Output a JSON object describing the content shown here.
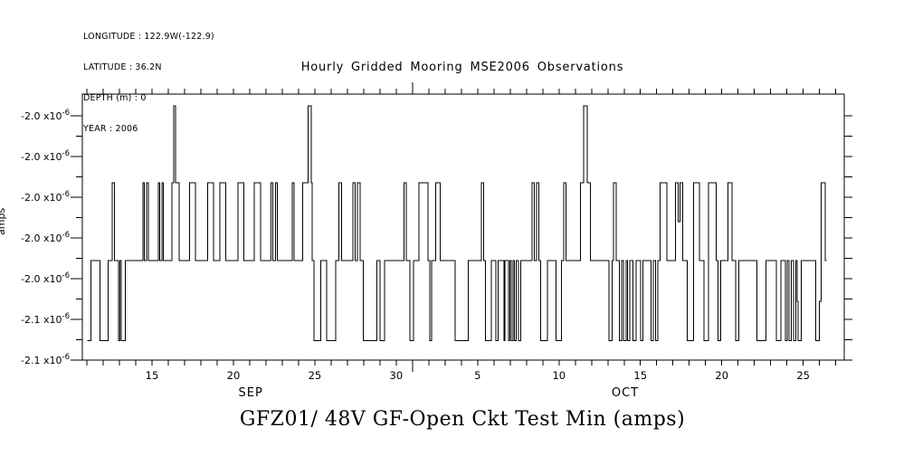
{
  "meta": {
    "lines": [
      "LONGITUDE : 122.9W(-122.9)",
      "LATITUDE : 36.2N",
      "DEPTH (m) : 0",
      "YEAR : 2006"
    ]
  },
  "titles": {
    "top": "Hourly Gridded Mooring MSE2006 Observations",
    "bottom": "GFZ01/ 48V GF-Open Ckt Test Min (amps)",
    "y_axis_clipped": "amps"
  },
  "chart_data": {
    "type": "line",
    "line_style": "step-post",
    "stroke": "#000000",
    "background": "#ffffff",
    "title": "Hourly Gridded Mooring MSE2006 Observations",
    "bottom_title": "GFZ01/ 48V GF-Open Ckt Test Min (amps)",
    "ylabel": "amps",
    "grid": "off",
    "y_axis": {
      "scale_prefix": "x10",
      "scale_exp": "-6",
      "domain_e6": [
        -2.1,
        -1.93667
      ],
      "major_tick_values_e6": [
        -1.95,
        -1.975,
        -2.0,
        -2.025,
        -2.05,
        -2.075,
        -2.1
      ],
      "major_tick_labels": [
        "-2.0",
        "-2.0",
        "-2.0",
        "-2.0",
        "-2.0",
        "-2.1",
        "-2.1"
      ],
      "minor_tick_values_e6": [
        -1.9625,
        -1.9875,
        -2.0125,
        -2.0375,
        -2.0625,
        -2.0875
      ]
    },
    "x_axis": {
      "unit": "days (Sep 11 - Oct 27, 2006)",
      "domain_days": [
        0,
        46.8
      ],
      "daily_tick_first_day": 0.28,
      "daily_tick_count": 47,
      "long_tick_days": [
        20.28
      ],
      "labeled_ticks": [
        {
          "day": 4.28,
          "label": "15"
        },
        {
          "day": 9.28,
          "label": "20"
        },
        {
          "day": 14.28,
          "label": "25"
        },
        {
          "day": 19.28,
          "label": "30"
        },
        {
          "day": 24.28,
          "label": "5"
        },
        {
          "day": 29.28,
          "label": "10"
        },
        {
          "day": 34.28,
          "label": "15"
        },
        {
          "day": 39.28,
          "label": "20"
        },
        {
          "day": 44.28,
          "label": "25"
        }
      ],
      "month_labels": [
        {
          "day": 10.35,
          "label": "SEP"
        },
        {
          "day": 33.35,
          "label": "OCT"
        }
      ]
    },
    "levels_e6": [
      -2.088,
      -2.064,
      -2.039,
      -2.015,
      -1.991,
      -1.968,
      -1.944
    ],
    "series_steps": [
      [
        0.3,
        0
      ],
      [
        0.54,
        2
      ],
      [
        1.09,
        0
      ],
      [
        1.59,
        2
      ],
      [
        1.83,
        4
      ],
      [
        1.98,
        2
      ],
      [
        2.21,
        0
      ],
      [
        2.3,
        2
      ],
      [
        2.38,
        0
      ],
      [
        2.65,
        2
      ],
      [
        3.72,
        4
      ],
      [
        3.8,
        2
      ],
      [
        3.95,
        4
      ],
      [
        4.05,
        2
      ],
      [
        4.67,
        4
      ],
      [
        4.76,
        2
      ],
      [
        4.88,
        4
      ],
      [
        4.97,
        2
      ],
      [
        5.5,
        4
      ],
      [
        5.61,
        6
      ],
      [
        5.72,
        4
      ],
      [
        5.94,
        2
      ],
      [
        6.59,
        4
      ],
      [
        6.96,
        2
      ],
      [
        7.71,
        4
      ],
      [
        8.07,
        2
      ],
      [
        8.44,
        4
      ],
      [
        8.82,
        2
      ],
      [
        9.56,
        4
      ],
      [
        9.93,
        2
      ],
      [
        10.57,
        4
      ],
      [
        10.94,
        2
      ],
      [
        11.59,
        4
      ],
      [
        11.7,
        2
      ],
      [
        11.87,
        4
      ],
      [
        11.98,
        2
      ],
      [
        12.89,
        4
      ],
      [
        13.0,
        2
      ],
      [
        13.54,
        4
      ],
      [
        13.87,
        6
      ],
      [
        14.06,
        4
      ],
      [
        14.13,
        2
      ],
      [
        14.24,
        0
      ],
      [
        14.65,
        2
      ],
      [
        15.02,
        0
      ],
      [
        15.55,
        2
      ],
      [
        15.76,
        4
      ],
      [
        15.93,
        2
      ],
      [
        16.61,
        4
      ],
      [
        16.75,
        2
      ],
      [
        16.9,
        4
      ],
      [
        17.05,
        2
      ],
      [
        17.26,
        0
      ],
      [
        18.09,
        2
      ],
      [
        18.28,
        0
      ],
      [
        18.56,
        2
      ],
      [
        19.76,
        4
      ],
      [
        19.9,
        2
      ],
      [
        20.13,
        0
      ],
      [
        20.35,
        2
      ],
      [
        20.68,
        4
      ],
      [
        21.24,
        2
      ],
      [
        21.33,
        0
      ],
      [
        21.46,
        2
      ],
      [
        21.7,
        4
      ],
      [
        21.98,
        2
      ],
      [
        22.91,
        0
      ],
      [
        23.7,
        2
      ],
      [
        24.52,
        4
      ],
      [
        24.65,
        2
      ],
      [
        24.76,
        0
      ],
      [
        25.13,
        2
      ],
      [
        25.4,
        0
      ],
      [
        25.55,
        2
      ],
      [
        25.9,
        0
      ],
      [
        25.97,
        2
      ],
      [
        26.18,
        0
      ],
      [
        26.25,
        2
      ],
      [
        26.35,
        0
      ],
      [
        26.45,
        2
      ],
      [
        26.55,
        0
      ],
      [
        26.65,
        2
      ],
      [
        26.78,
        0
      ],
      [
        26.92,
        2
      ],
      [
        27.63,
        4
      ],
      [
        27.75,
        2
      ],
      [
        27.9,
        4
      ],
      [
        28.05,
        2
      ],
      [
        28.15,
        0
      ],
      [
        28.56,
        2
      ],
      [
        29.11,
        0
      ],
      [
        29.43,
        2
      ],
      [
        29.57,
        4
      ],
      [
        29.7,
        2
      ],
      [
        30.59,
        4
      ],
      [
        30.78,
        6
      ],
      [
        31.02,
        4
      ],
      [
        31.21,
        2
      ],
      [
        32.35,
        0
      ],
      [
        32.54,
        2
      ],
      [
        32.63,
        4
      ],
      [
        32.8,
        2
      ],
      [
        33.0,
        0
      ],
      [
        33.12,
        2
      ],
      [
        33.25,
        0
      ],
      [
        33.4,
        2
      ],
      [
        33.5,
        0
      ],
      [
        33.62,
        2
      ],
      [
        33.83,
        0
      ],
      [
        34.02,
        2
      ],
      [
        34.3,
        0
      ],
      [
        34.43,
        2
      ],
      [
        34.94,
        0
      ],
      [
        35.07,
        2
      ],
      [
        35.22,
        0
      ],
      [
        35.35,
        2
      ],
      [
        35.5,
        4
      ],
      [
        35.91,
        2
      ],
      [
        36.43,
        4
      ],
      [
        36.6,
        3
      ],
      [
        36.72,
        4
      ],
      [
        36.89,
        2
      ],
      [
        37.17,
        0
      ],
      [
        37.54,
        4
      ],
      [
        37.9,
        2
      ],
      [
        38.18,
        0
      ],
      [
        38.46,
        4
      ],
      [
        38.93,
        2
      ],
      [
        39.06,
        0
      ],
      [
        39.21,
        2
      ],
      [
        39.67,
        4
      ],
      [
        39.91,
        2
      ],
      [
        40.13,
        0
      ],
      [
        40.32,
        2
      ],
      [
        41.43,
        0
      ],
      [
        41.98,
        2
      ],
      [
        42.63,
        0
      ],
      [
        42.91,
        2
      ],
      [
        43.18,
        0
      ],
      [
        43.3,
        2
      ],
      [
        43.42,
        0
      ],
      [
        43.55,
        2
      ],
      [
        43.68,
        0
      ],
      [
        43.83,
        2
      ],
      [
        43.9,
        1
      ],
      [
        43.97,
        0
      ],
      [
        44.15,
        2
      ],
      [
        45.06,
        0
      ],
      [
        45.28,
        1
      ],
      [
        45.39,
        4
      ],
      [
        45.62,
        2
      ],
      [
        45.72,
        2
      ]
    ]
  }
}
